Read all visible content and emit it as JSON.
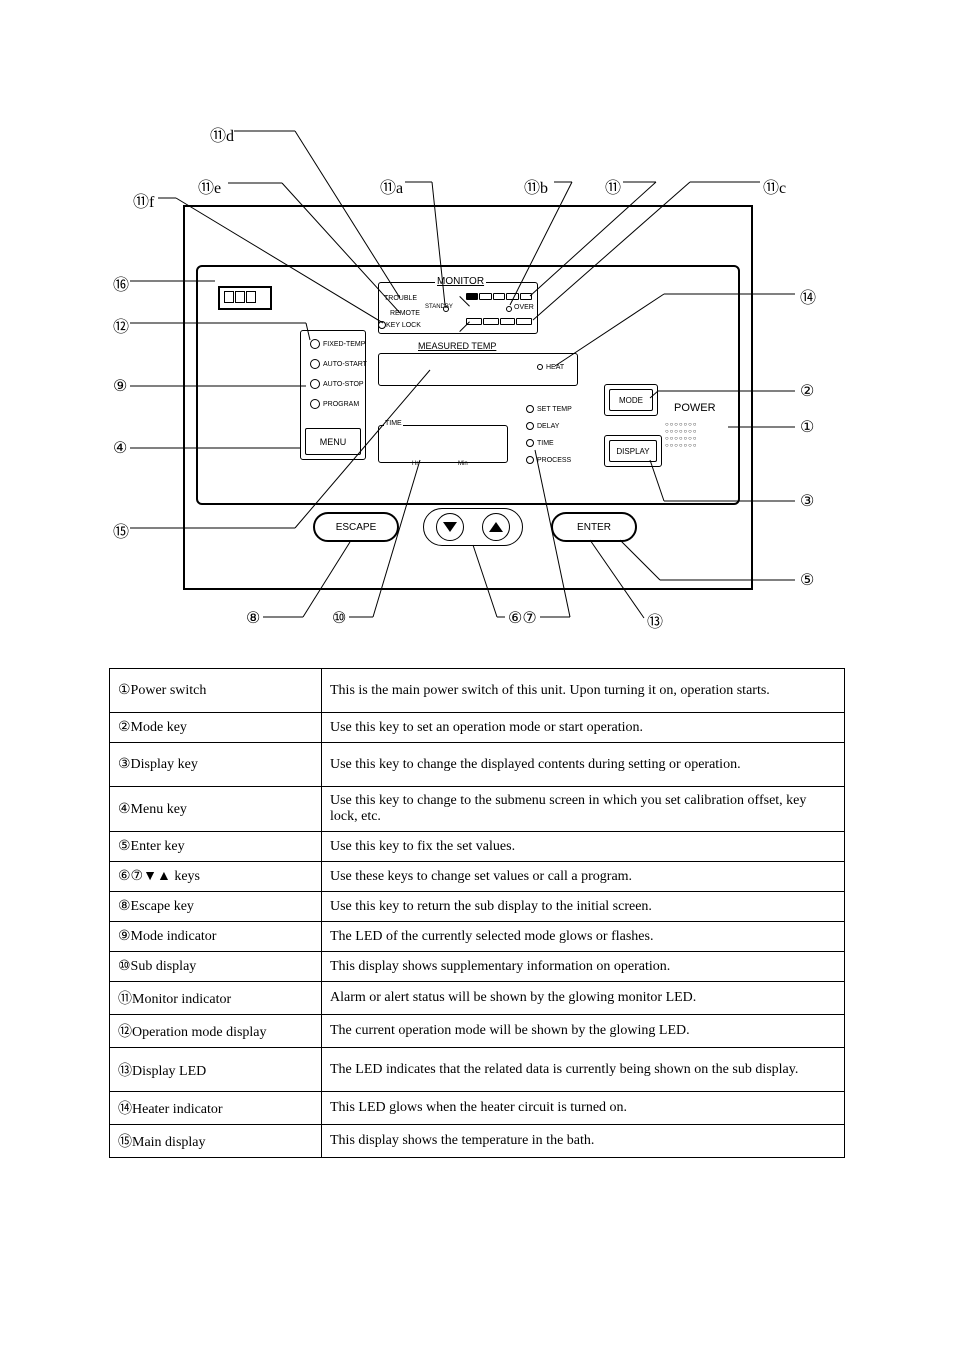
{
  "diagram": {
    "panel_labels": {
      "monitor_title": "MONITOR",
      "trouble": "TROUBLE",
      "remote": "REMOTE",
      "keylock_icon": "KEY LOCK",
      "standby": "STANDBY",
      "over": "OVER",
      "measured_title": "MEASURED TEMP",
      "heat": "HEAT",
      "mode_btn": "MODE",
      "display_btn": "DISPLAY",
      "time": "TIME",
      "hr": "Hr",
      "min": "Min",
      "set_temp": "SET TEMP",
      "delay": "DELAY",
      "time2": "TIME",
      "process": "PROCESS",
      "menu": "MENU",
      "modes": {
        "fixed": "FIXED-TEMP",
        "auto_start": "AUTO-START",
        "auto_stop": "AUTO-STOP",
        "program": "PROGRAM"
      },
      "power": "POWER",
      "power_dots": "○○○○○○○\n○○○○○○○\n○○○○○○○\n○○○○○○○",
      "escape": "ESCAPE",
      "enter": "ENTER"
    },
    "callouts": {
      "c11d": "⑪d",
      "c11e": "⑪e",
      "c11f": "⑪f",
      "c11a": "⑪a",
      "c11b": "⑪b",
      "c11": "⑪",
      "c11c": "⑪c",
      "c16": "⑯",
      "c12": "⑫",
      "c9": "⑨",
      "c4": "④",
      "c15": "⑮",
      "c8": "⑧",
      "c10": "⑩",
      "c67": "⑥⑦",
      "c13": "⑬",
      "c14": "⑭",
      "c2": "②",
      "c1": "①",
      "c3": "③",
      "c5": "⑤"
    }
  },
  "table": {
    "rows": [
      {
        "h": "two",
        "c1": "①Power switch",
        "c2": "This is the main power switch of this unit. Upon turning it on, operation starts."
      },
      {
        "h": "one",
        "c1": "②Mode key",
        "c2": "Use this key to set an operation mode or start operation."
      },
      {
        "h": "two",
        "c1": "③Display key",
        "c2": "Use this key to change the displayed contents during setting or operation."
      },
      {
        "h": "two",
        "c1": "④Menu key",
        "c2": "Use this key to change to the submenu screen in which you set calibration offset, key lock, etc."
      },
      {
        "h": "one",
        "c1": "⑤Enter key",
        "c2": "Use this key to fix the set values."
      },
      {
        "h": "one",
        "c1": "⑥⑦▼▲ keys",
        "c2": "Use these keys to change set values or call a program."
      },
      {
        "h": "one",
        "c1": "⑧Escape key",
        "c2": "Use this key to return the sub display to the initial screen."
      },
      {
        "h": "one",
        "c1": "⑨Mode indicator",
        "c2": "The LED of the currently selected mode glows or flashes."
      },
      {
        "h": "one",
        "c1": "⑩Sub display",
        "c2": "This display shows supplementary information on operation."
      },
      {
        "h": "one",
        "c1": "⑪Monitor indicator",
        "c2": "Alarm or alert status will be shown by the glowing monitor LED."
      },
      {
        "h": "one",
        "c1": "⑫Operation mode display",
        "c2": "The current operation mode will be shown by the glowing LED."
      },
      {
        "h": "two",
        "c1": "⑬Display LED",
        "c2": "The LED indicates that the related data is currently being shown on the sub display."
      },
      {
        "h": "one",
        "c1": "⑭Heater indicator",
        "c2": "This LED glows when the heater circuit is turned on."
      },
      {
        "h": "one",
        "c1": "⑮Main display",
        "c2": "This display shows the temperature in the bath."
      }
    ]
  }
}
